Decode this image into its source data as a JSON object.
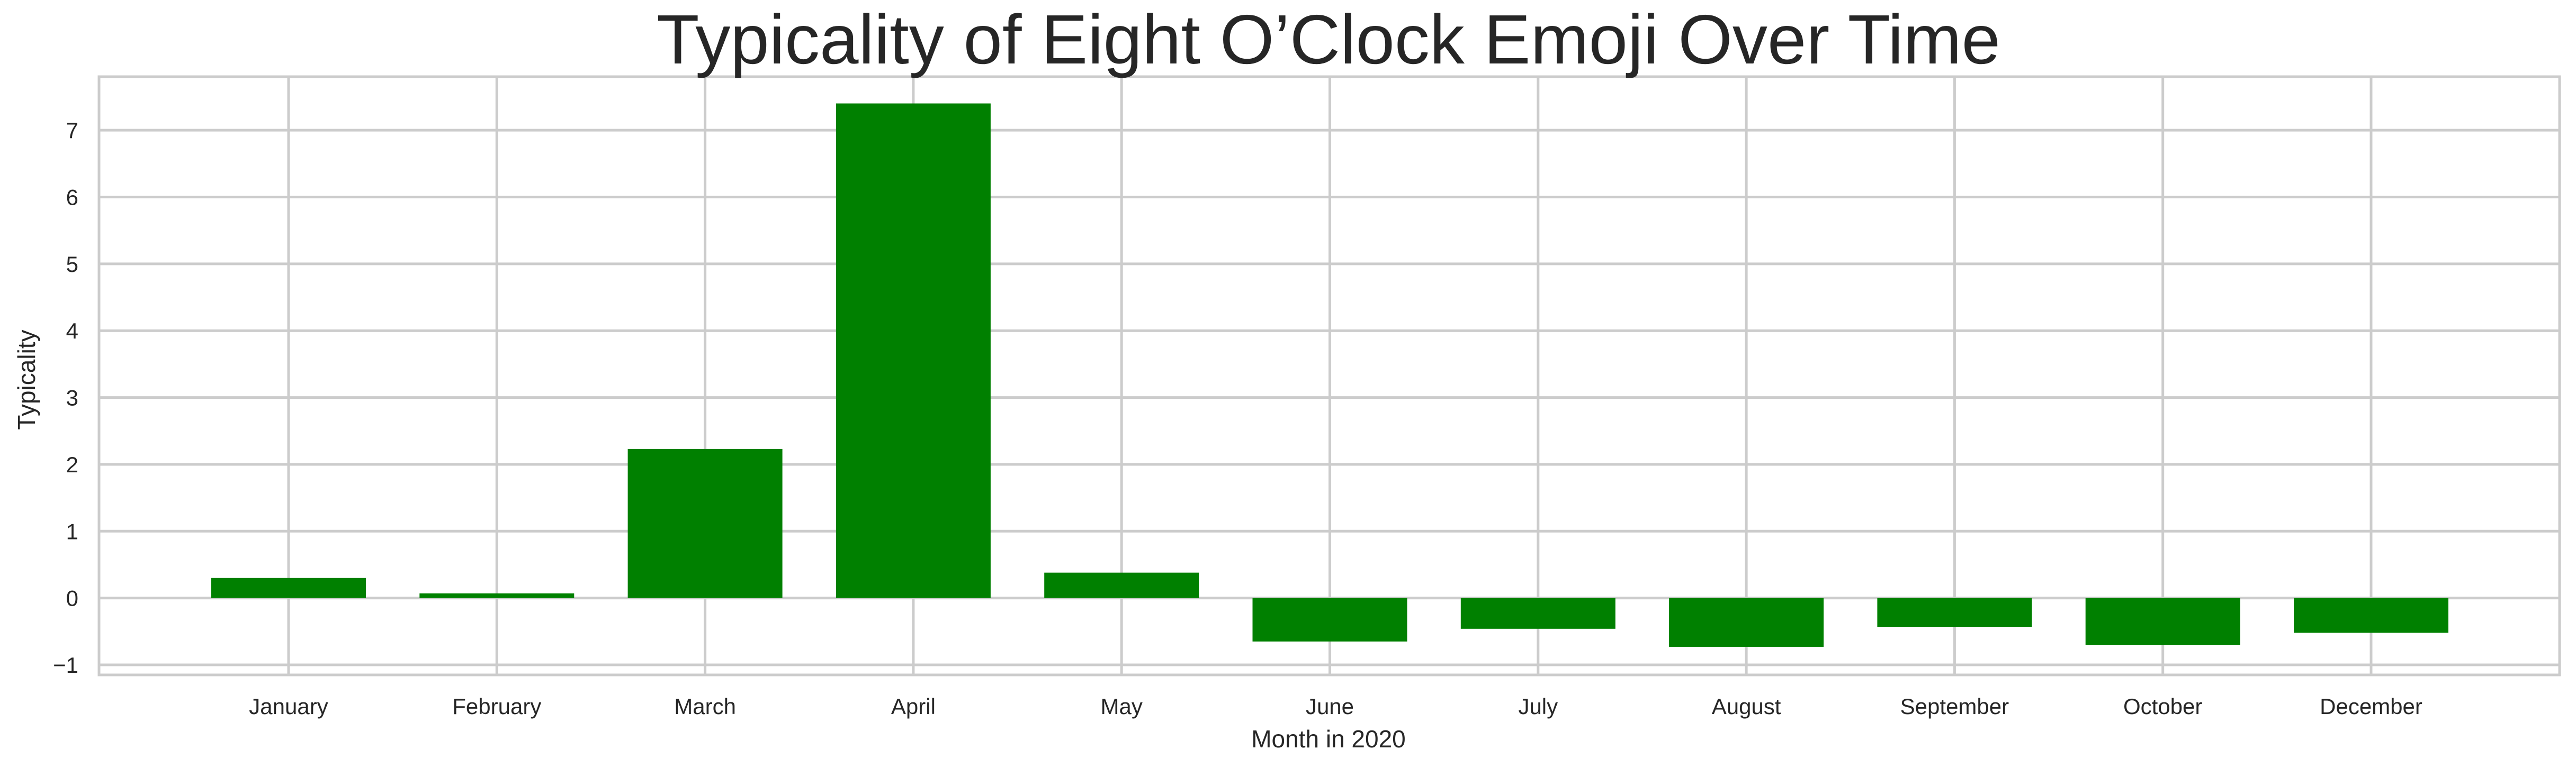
{
  "chart_data": {
    "type": "bar",
    "title": "Typicality of Eight O’Clock Emoji Over Time",
    "xlabel": "Month in 2020",
    "ylabel": "Typicality",
    "categories": [
      "January",
      "February",
      "March",
      "April",
      "May",
      "June",
      "July",
      "August",
      "September",
      "October",
      "December"
    ],
    "values": [
      0.3,
      0.07,
      2.23,
      7.4,
      0.38,
      -0.65,
      -0.46,
      -0.73,
      -0.43,
      -0.7,
      -0.52
    ],
    "ylim": [
      -1.15,
      7.8
    ],
    "yticks": [
      -1,
      0,
      1,
      2,
      3,
      4,
      5,
      6,
      7
    ],
    "ytick_labels": [
      "−1",
      "0",
      "1",
      "2",
      "3",
      "4",
      "5",
      "6",
      "7"
    ],
    "grid": true,
    "colors": {
      "bar": "#008000",
      "grid": "#cccccc",
      "text": "#262626"
    }
  }
}
